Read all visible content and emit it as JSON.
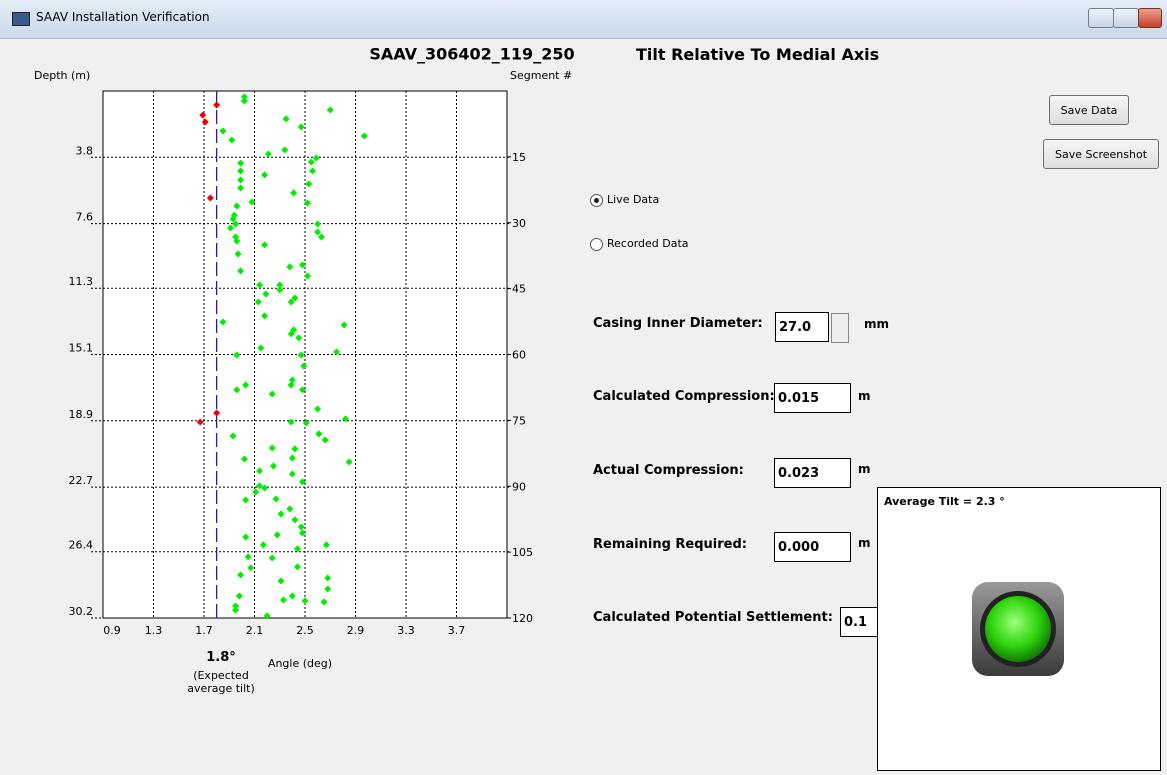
{
  "window": {
    "title": "SAAV Installation Verification"
  },
  "chart_data": {
    "type": "scatter",
    "title": "SAAV_306402_119_250",
    "subtitle": "Tilt Relative To Medial Axis",
    "xlabel": "Angle (deg)",
    "ylabel": "Depth (m)",
    "y2label": "Segment #",
    "xlim": [
      0.9,
      4.1
    ],
    "xticks": [
      0.9,
      1.3,
      1.7,
      2.1,
      2.5,
      2.9,
      3.3,
      3.7
    ],
    "ylim": [
      0,
      30.2
    ],
    "yticks": [
      3.8,
      7.6,
      11.3,
      15.1,
      18.9,
      22.7,
      26.4,
      30.2
    ],
    "y_inverted": true,
    "y2lim": [
      0,
      120
    ],
    "y2ticks": [
      15,
      30,
      45,
      60,
      75,
      90,
      105,
      120
    ],
    "grid": true,
    "reference_line": {
      "value": 1.8,
      "label": "1.8°",
      "note": "(Expected average tilt)",
      "color": "#1a1acc"
    },
    "series": [
      {
        "color": "#00ee00",
        "x": [
          2.02,
          2.02,
          2.7,
          2.35,
          2.47,
          2.97,
          1.85,
          1.92,
          2.34,
          2.21,
          2.59,
          2.55,
          1.99,
          2.56,
          1.99,
          2.18,
          1.99,
          2.53,
          1.99,
          2.41,
          2.08,
          2.52,
          1.96,
          1.94,
          1.93,
          1.95,
          2.6,
          1.91,
          2.6,
          1.95,
          1.96,
          2.63,
          2.18,
          1.97,
          2.38,
          2.48,
          1.99,
          2.52,
          2.14,
          2.3,
          2.3,
          2.19,
          2.42,
          2.13,
          2.39,
          1.85,
          2.18,
          2.81,
          2.41,
          2.39,
          2.45,
          2.75,
          1.96,
          2.15,
          2.47,
          2.49,
          2.4,
          2.39,
          2.03,
          1.96,
          2.48,
          2.24,
          2.6,
          2.82,
          2.39,
          2.51,
          2.61,
          1.93,
          2.66,
          2.24,
          2.42,
          2.4,
          2.85,
          2.02,
          2.25,
          2.14,
          2.4,
          2.48,
          2.14,
          2.18,
          2.11,
          2.03,
          2.27,
          2.38,
          2.31,
          2.42,
          2.47,
          2.48,
          2.28,
          2.03,
          2.67,
          2.17,
          2.44,
          2.05,
          2.24,
          2.07,
          2.44,
          1.99,
          2.68,
          2.31,
          2.68,
          1.98,
          2.4,
          2.33,
          2.5,
          2.65,
          1.95,
          1.95,
          2.2
        ],
        "y": [
          0.34,
          0.57,
          1.09,
          1.6,
          2.06,
          2.58,
          2.29,
          2.81,
          3.38,
          3.61,
          3.84,
          4.07,
          4.13,
          4.58,
          4.58,
          4.81,
          5.1,
          5.33,
          5.56,
          5.84,
          6.36,
          6.42,
          6.59,
          7.11,
          7.33,
          7.62,
          7.62,
          7.85,
          8.08,
          8.37,
          8.6,
          8.37,
          8.82,
          9.34,
          10.08,
          9.97,
          10.31,
          10.6,
          11.12,
          11.12,
          11.4,
          11.63,
          11.86,
          12.09,
          12.09,
          13.24,
          12.89,
          13.41,
          13.69,
          13.92,
          14.15,
          14.96,
          15.13,
          14.73,
          15.13,
          15.76,
          16.56,
          16.85,
          16.85,
          17.13,
          17.13,
          17.36,
          18.22,
          18.79,
          18.97,
          19.02,
          19.65,
          19.77,
          20.0,
          20.46,
          20.51,
          21.03,
          21.26,
          21.09,
          21.49,
          21.77,
          21.95,
          22.4,
          22.63,
          22.75,
          22.98,
          23.44,
          23.38,
          23.95,
          24.24,
          24.58,
          24.98,
          25.33,
          25.44,
          25.56,
          26.01,
          26.01,
          26.24,
          26.7,
          26.76,
          27.33,
          27.27,
          27.73,
          27.91,
          28.08,
          28.54,
          28.94,
          28.94,
          29.17,
          29.22,
          29.28,
          29.51,
          29.74,
          30.08
        ]
      },
      {
        "color": "#ee0000",
        "x": [
          1.8,
          1.69,
          1.71,
          1.75,
          1.8,
          1.67
        ],
        "y": [
          0.8,
          1.38,
          1.78,
          6.13,
          18.45,
          18.97
        ]
      }
    ]
  },
  "buttons": [
    "Save Data",
    "Save Screenshot"
  ],
  "radios": [
    {
      "label": "Live Data",
      "checked": true
    },
    {
      "label": "Recorded Data",
      "checked": false
    }
  ],
  "fields": [
    {
      "label": "Casing Inner Diameter:",
      "value": "27.0",
      "unit": "mm"
    },
    {
      "label": "Calculated Compression:",
      "value": "0.015",
      "unit": "m"
    },
    {
      "label": "Actual Compression:",
      "value": "0.023",
      "unit": "m"
    },
    {
      "label": "Remaining Required:",
      "value": "0.000",
      "unit": "m"
    },
    {
      "label": "Calculated Potential Settlement:",
      "value": "0.1"
    }
  ],
  "status_panel": {
    "label": "Average Tilt = 2.3 °"
  }
}
